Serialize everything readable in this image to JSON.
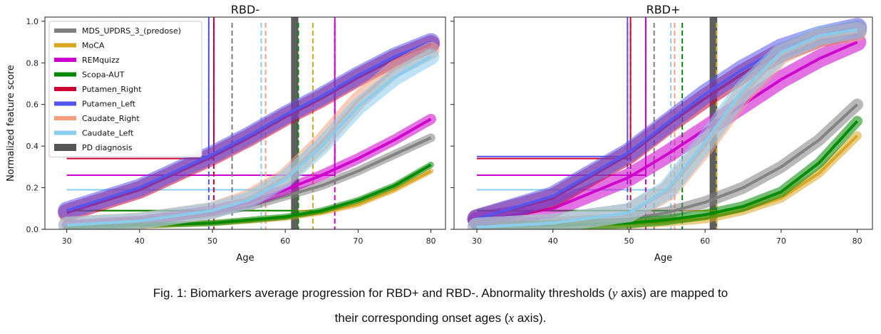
{
  "figure": {
    "caption_prefix": "Fig. 1: Biomarkers average progression for RBD+ and RBD-. Abnormality thresholds (",
    "caption_y_var": "y",
    "caption_mid": " axis) are mapped to",
    "caption_line2_prefix": "their corresponding onset ages (",
    "caption_x_var": "x",
    "caption_line2_suffix": " axis)."
  },
  "chart_data": [
    {
      "type": "line",
      "title": "RBD-",
      "xlabel": "Age",
      "ylabel": "Normalized feature score",
      "xlim": [
        27,
        82
      ],
      "ylim": [
        0,
        1.02
      ],
      "xticks": [
        30,
        40,
        50,
        60,
        70,
        80
      ],
      "yticks": [
        0.0,
        0.2,
        0.4,
        0.6,
        0.8,
        1.0
      ],
      "legend_position": "top-left",
      "series": [
        {
          "name": "MDS_UPDRS_3_(predose)",
          "color": "#808080",
          "x": [
            30,
            40,
            50,
            55,
            60,
            65,
            70,
            75,
            80
          ],
          "y": [
            0.02,
            0.04,
            0.08,
            0.11,
            0.16,
            0.21,
            0.28,
            0.36,
            0.44
          ],
          "threshold_y": 0.09,
          "onset_age": 52.7
        },
        {
          "name": "MoCA",
          "color": "#DAA520",
          "x": [
            30,
            40,
            50,
            55,
            60,
            65,
            70,
            75,
            80
          ],
          "y": [
            0.01,
            0.015,
            0.03,
            0.04,
            0.055,
            0.08,
            0.12,
            0.19,
            0.28
          ],
          "threshold_y": 0.09,
          "onset_age": 63.8
        },
        {
          "name": "REMquizz",
          "color": "#CC00CC",
          "x": [
            30,
            40,
            50,
            55,
            60,
            65,
            70,
            75,
            80
          ],
          "y": [
            0.02,
            0.04,
            0.09,
            0.13,
            0.19,
            0.26,
            0.34,
            0.43,
            0.53
          ],
          "threshold_y": 0.26,
          "onset_age": 66.8
        },
        {
          "name": "Scopa-AUT",
          "color": "#008800",
          "x": [
            30,
            40,
            50,
            55,
            60,
            65,
            70,
            75,
            80
          ],
          "y": [
            0.01,
            0.02,
            0.03,
            0.045,
            0.06,
            0.09,
            0.14,
            0.21,
            0.31
          ],
          "threshold_y": 0.09,
          "onset_age": 61.8
        },
        {
          "name": "Putamen_Right",
          "color": "#CC0033",
          "x": [
            30,
            40,
            50,
            55,
            60,
            65,
            70,
            75,
            80
          ],
          "y": [
            0.08,
            0.19,
            0.35,
            0.44,
            0.54,
            0.63,
            0.73,
            0.82,
            0.89
          ],
          "threshold_y": 0.34,
          "onset_age": 50.2
        },
        {
          "name": "Putamen_Left",
          "color": "#5555EE",
          "x": [
            30,
            40,
            50,
            55,
            60,
            65,
            70,
            75,
            80
          ],
          "y": [
            0.09,
            0.2,
            0.36,
            0.45,
            0.55,
            0.64,
            0.74,
            0.83,
            0.9
          ],
          "threshold_y": 0.35,
          "onset_age": 49.5
        },
        {
          "name": "Caudate_Right",
          "color": "#F4A080",
          "x": [
            30,
            40,
            50,
            55,
            60,
            65,
            70,
            75,
            80
          ],
          "y": [
            0.02,
            0.04,
            0.09,
            0.15,
            0.25,
            0.42,
            0.62,
            0.77,
            0.86
          ],
          "threshold_y": 0.19,
          "onset_age": 57.3
        },
        {
          "name": "Caudate_Left",
          "color": "#88CCEE",
          "x": [
            30,
            40,
            50,
            55,
            60,
            65,
            70,
            75,
            80
          ],
          "y": [
            0.02,
            0.04,
            0.09,
            0.14,
            0.24,
            0.4,
            0.59,
            0.73,
            0.83
          ],
          "threshold_y": 0.19,
          "onset_age": 56.7
        }
      ],
      "pd_diagnosis": {
        "name": "PD diagnosis",
        "color": "#555555",
        "age_range": [
          60.8,
          61.8
        ]
      }
    },
    {
      "type": "line",
      "title": "RBD+",
      "xlabel": "Age",
      "ylabel": "",
      "xlim": [
        27,
        82
      ],
      "ylim": [
        0,
        1.02
      ],
      "xticks": [
        30,
        40,
        50,
        60,
        70,
        80
      ],
      "yticks": [
        0.0,
        0.2,
        0.4,
        0.6,
        0.8,
        1.0
      ],
      "series": [
        {
          "name": "MDS_UPDRS_3_(predose)",
          "color": "#808080",
          "x": [
            30,
            40,
            50,
            55,
            60,
            65,
            70,
            75,
            80
          ],
          "y": [
            0.02,
            0.03,
            0.05,
            0.08,
            0.13,
            0.2,
            0.3,
            0.43,
            0.6
          ],
          "threshold_y": 0.09,
          "onset_age": 53.3
        },
        {
          "name": "MoCA",
          "color": "#DAA520",
          "x": [
            30,
            40,
            50,
            55,
            60,
            65,
            70,
            75,
            80
          ],
          "y": [
            0.01,
            0.015,
            0.025,
            0.035,
            0.05,
            0.09,
            0.15,
            0.27,
            0.45
          ],
          "threshold_y": 0.09,
          "onset_age": 61.5
        },
        {
          "name": "REMquizz",
          "color": "#CC00CC",
          "x": [
            30,
            40,
            50,
            55,
            60,
            65,
            70,
            75,
            80
          ],
          "y": [
            0.04,
            0.1,
            0.25,
            0.36,
            0.48,
            0.6,
            0.72,
            0.82,
            0.9
          ],
          "threshold_y": 0.26,
          "onset_age": 52.2
        },
        {
          "name": "Scopa-AUT",
          "color": "#008800",
          "x": [
            30,
            40,
            50,
            55,
            60,
            65,
            70,
            75,
            80
          ],
          "y": [
            0.01,
            0.02,
            0.03,
            0.045,
            0.07,
            0.11,
            0.18,
            0.32,
            0.52
          ],
          "threshold_y": 0.09,
          "onset_age": 57.0
        },
        {
          "name": "Putamen_Right",
          "color": "#CC0033",
          "x": [
            30,
            40,
            50,
            55,
            60,
            65,
            70,
            75,
            80
          ],
          "y": [
            0.05,
            0.15,
            0.36,
            0.5,
            0.63,
            0.75,
            0.85,
            0.92,
            0.96
          ],
          "threshold_y": 0.34,
          "onset_age": 50.2
        },
        {
          "name": "Putamen_Left",
          "color": "#5555EE",
          "x": [
            30,
            40,
            50,
            55,
            60,
            65,
            70,
            75,
            80
          ],
          "y": [
            0.05,
            0.16,
            0.37,
            0.51,
            0.65,
            0.77,
            0.87,
            0.93,
            0.97
          ],
          "threshold_y": 0.35,
          "onset_age": 49.8
        },
        {
          "name": "Caudate_Right",
          "color": "#F4A080",
          "x": [
            30,
            40,
            50,
            55,
            60,
            65,
            70,
            75,
            80
          ],
          "y": [
            0.01,
            0.03,
            0.08,
            0.18,
            0.4,
            0.65,
            0.84,
            0.92,
            0.95
          ],
          "threshold_y": 0.19,
          "onset_age": 56.0
        },
        {
          "name": "Caudate_Left",
          "color": "#88CCEE",
          "x": [
            30,
            40,
            50,
            55,
            60,
            65,
            70,
            75,
            80
          ],
          "y": [
            0.01,
            0.03,
            0.08,
            0.19,
            0.42,
            0.67,
            0.85,
            0.93,
            0.96
          ],
          "threshold_y": 0.19,
          "onset_age": 55.5
        }
      ],
      "pd_diagnosis": {
        "name": "PD diagnosis",
        "color": "#555555",
        "age_range": [
          60.6,
          61.6
        ]
      }
    }
  ]
}
